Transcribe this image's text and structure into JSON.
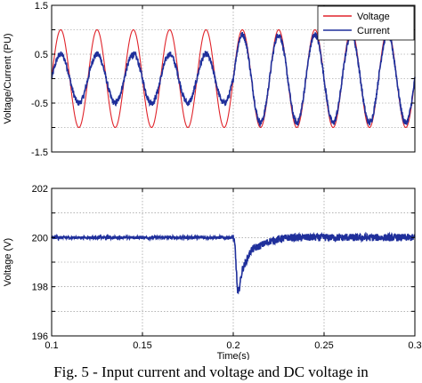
{
  "caption": "Fig. 5 - Input current and voltage and DC voltage in",
  "colors": {
    "voltage": "#e0242b",
    "current": "#1f2f9b",
    "grid": "#888888",
    "axis": "#000000"
  },
  "chart_data": [
    {
      "type": "line",
      "title": "",
      "xlabel": "",
      "ylabel": "Voltage/Current (PU)",
      "xlim": [
        0.1,
        0.3
      ],
      "ylim": [
        -1.5,
        1.5
      ],
      "xticks": [
        0.1,
        0.15,
        0.2,
        0.25,
        0.3
      ],
      "xtick_labels": [
        "",
        "",
        "",
        "",
        ""
      ],
      "yticks": [
        -1.5,
        -1.0,
        -0.5,
        0.0,
        0.5,
        1.0,
        1.5
      ],
      "ytick_labels": [
        "-1.5",
        "",
        "-0.5",
        "",
        "0.5",
        "",
        "1.5"
      ],
      "grid": true,
      "legend": "top-right",
      "frequency_hz": 50,
      "series": [
        {
          "name": "Voltage",
          "color_key": "voltage",
          "segments": [
            {
              "from": 0.1,
              "to": 0.3,
              "amplitude": 1.0,
              "phase_deg": 0,
              "offset": 0
            }
          ]
        },
        {
          "name": "Current",
          "color_key": "current",
          "segments": [
            {
              "from": 0.1,
              "to": 0.2,
              "amplitude": 0.5,
              "phase_deg": 0,
              "offset": 0
            },
            {
              "from": 0.2,
              "to": 0.3,
              "amplitude": 0.9,
              "phase_deg": 0,
              "offset": 0
            }
          ],
          "ripple": 0.06
        }
      ]
    },
    {
      "type": "line",
      "title": "",
      "xlabel": "Time(s)",
      "ylabel": "Voltage (V)",
      "xlim": [
        0.1,
        0.3
      ],
      "ylim": [
        196,
        202
      ],
      "xticks": [
        0.1,
        0.15,
        0.2,
        0.25,
        0.3
      ],
      "xtick_labels": [
        "0.1",
        "0.15",
        "0.2",
        "0.25",
        "0.3"
      ],
      "yticks": [
        196,
        197,
        198,
        199,
        200,
        201,
        202
      ],
      "ytick_labels": [
        "196",
        "",
        "198",
        "",
        "200",
        "",
        "202"
      ],
      "grid": true,
      "series": [
        {
          "name": "",
          "color_key": "current",
          "points": [
            [
              0.1,
              200.0
            ],
            [
              0.15,
              200.0
            ],
            [
              0.2,
              200.0
            ],
            [
              0.201,
              199.6
            ],
            [
              0.2025,
              197.6
            ],
            [
              0.205,
              198.7
            ],
            [
              0.21,
              199.5
            ],
            [
              0.22,
              199.85
            ],
            [
              0.23,
              200.0
            ],
            [
              0.3,
              200.0
            ]
          ],
          "ripple_before": 0.06,
          "ripple_after": 0.15
        }
      ]
    }
  ]
}
